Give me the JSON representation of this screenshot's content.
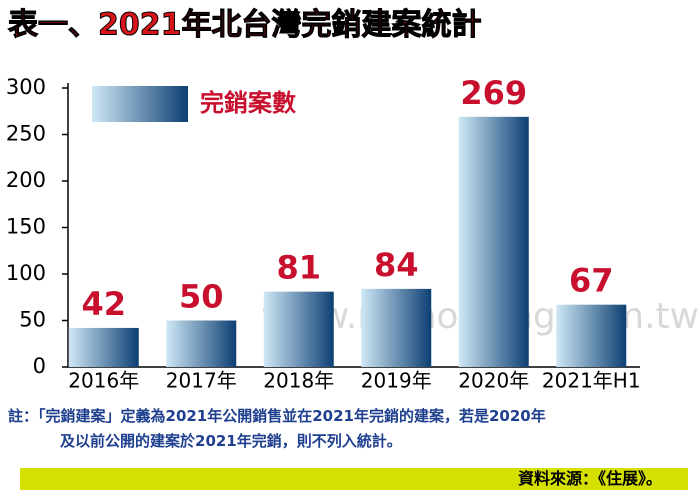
{
  "chart_data": {
    "type": "bar",
    "title": "表一、2021年北台灣完銷建案統計",
    "categories": [
      "2016年",
      "2017年",
      "2018年",
      "2019年",
      "2020年",
      "2021年H1"
    ],
    "series": [
      {
        "name": "完銷案數",
        "color": "#0d3f73",
        "values": [
          42,
          50,
          81,
          84,
          269,
          67
        ]
      }
    ],
    "ylim": [
      0,
      300
    ],
    "yticks": [
      0,
      50,
      100,
      150,
      200,
      250,
      300
    ],
    "grid": false,
    "watermark": "www.myhousing.com.tw"
  },
  "note": [
    "註：「完銷建案」定義為2021年公開銷售並在2021年完銷的建案，若是2020年",
    "及以前公開的建案於2021年完銷，則不列入統計。"
  ],
  "source": "資料來源：《住展》。"
}
